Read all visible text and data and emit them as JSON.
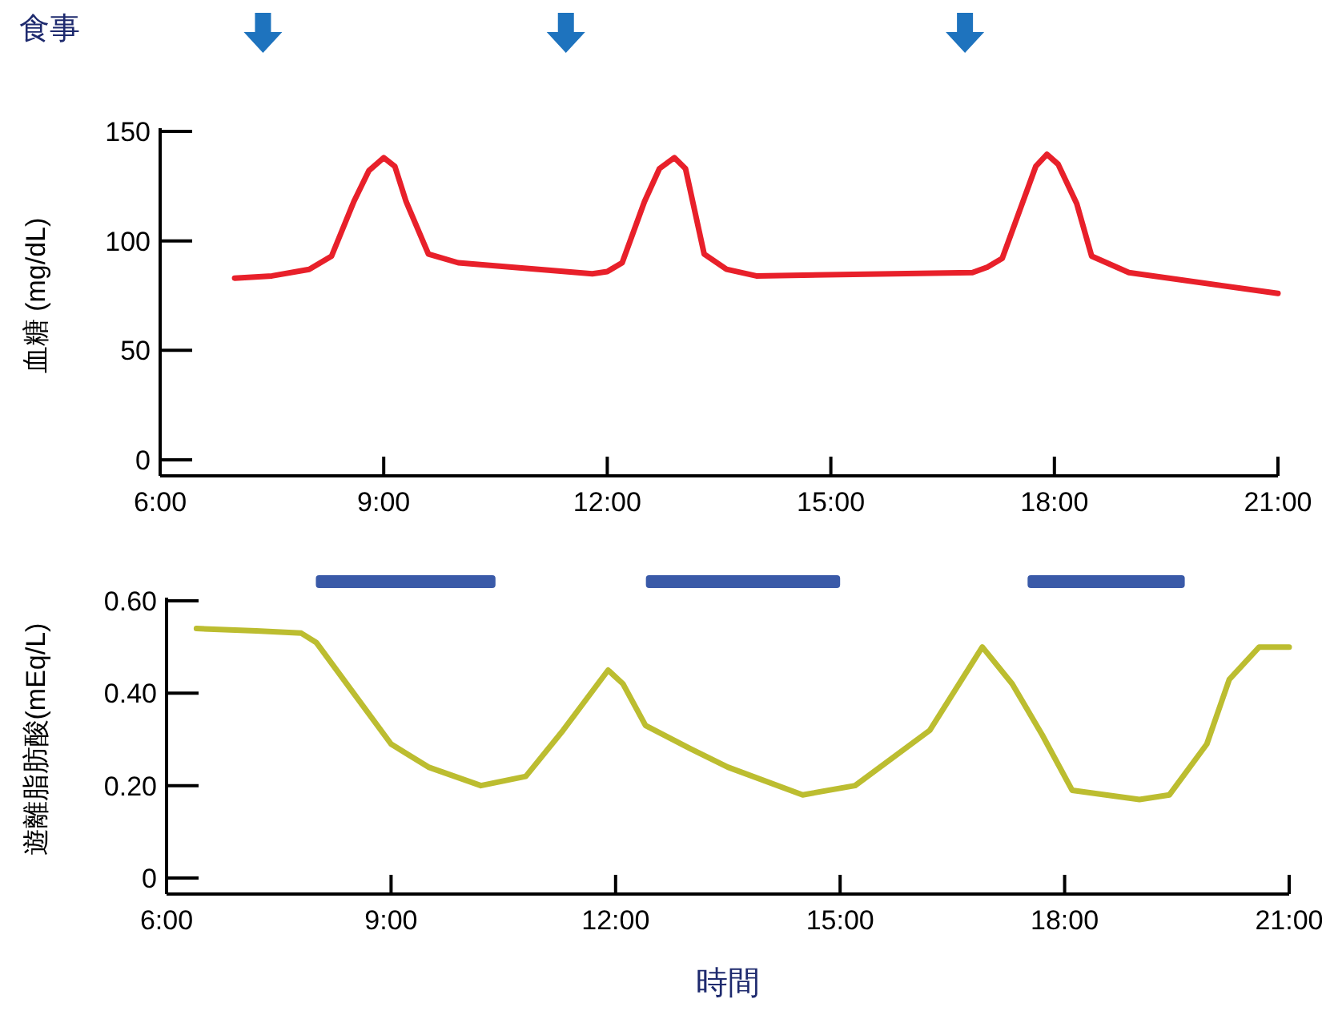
{
  "chart_data": [
    {
      "type": "line",
      "ylabel": "血糖 (mg/dL)",
      "annotations": [
        "食事"
      ],
      "x": [
        7.0,
        7.5,
        8.0,
        8.3,
        8.6,
        8.8,
        9.0,
        9.15,
        9.3,
        9.6,
        10.0,
        11.8,
        12.0,
        12.2,
        12.5,
        12.7,
        12.9,
        13.05,
        13.3,
        13.6,
        14.0,
        16.9,
        17.1,
        17.3,
        17.6,
        17.75,
        17.9,
        18.05,
        18.3,
        18.5,
        19.0,
        21.0
      ],
      "series": [
        {
          "color": "#e8202a",
          "values": [
            83,
            84,
            87,
            93,
            118,
            132,
            138,
            134,
            118,
            94,
            90,
            85,
            86,
            90,
            118,
            133,
            138,
            133,
            94,
            87,
            84,
            85.5,
            88,
            92,
            120,
            134,
            139.5,
            135,
            117,
            93,
            85.5,
            76
          ]
        }
      ],
      "xlim": [
        6,
        21
      ],
      "ylim": [
        0,
        150
      ],
      "yticks": [
        0,
        50,
        100,
        150
      ],
      "xticks": [
        {
          "value": 6,
          "label": "6:00"
        },
        {
          "value": 9,
          "label": "9:00"
        },
        {
          "value": 12,
          "label": "12:00"
        },
        {
          "value": 15,
          "label": "15:00"
        },
        {
          "value": 18,
          "label": "18:00"
        },
        {
          "value": 21,
          "label": "21:00"
        }
      ],
      "grid": false
    },
    {
      "type": "line",
      "ylabel": "遊離脂肪酸(mEq/L)",
      "xlabel": "時間",
      "x": [
        6.4,
        7.2,
        7.8,
        8.0,
        8.5,
        9.0,
        9.5,
        10.2,
        10.8,
        11.3,
        11.9,
        12.1,
        12.4,
        13.0,
        13.5,
        14.5,
        15.2,
        16.2,
        16.9,
        17.3,
        17.7,
        18.1,
        19.0,
        19.4,
        19.9,
        20.2,
        20.6,
        21.0
      ],
      "series": [
        {
          "color": "#bcbd30",
          "values": [
            0.54,
            0.535,
            0.53,
            0.51,
            0.4,
            0.29,
            0.24,
            0.2,
            0.22,
            0.32,
            0.45,
            0.42,
            0.33,
            0.28,
            0.24,
            0.18,
            0.2,
            0.32,
            0.5,
            0.42,
            0.31,
            0.19,
            0.17,
            0.18,
            0.29,
            0.43,
            0.5,
            0.5
          ]
        }
      ],
      "xlim": [
        6,
        21
      ],
      "ylim": [
        0,
        0.6
      ],
      "yticks": [
        0,
        {
          "value": 0.2,
          "label": "0.20"
        },
        {
          "value": 0.4,
          "label": "0.40"
        },
        {
          "value": 0.6,
          "label": "0.60"
        }
      ],
      "xticks": [
        {
          "value": 6,
          "label": "6:00"
        },
        {
          "value": 9,
          "label": "9:00"
        },
        {
          "value": 12,
          "label": "12:00"
        },
        {
          "value": 15,
          "label": "15:00"
        },
        {
          "value": 18,
          "label": "18:00"
        },
        {
          "value": 21,
          "label": "21:00"
        }
      ],
      "grid": false
    }
  ]
}
